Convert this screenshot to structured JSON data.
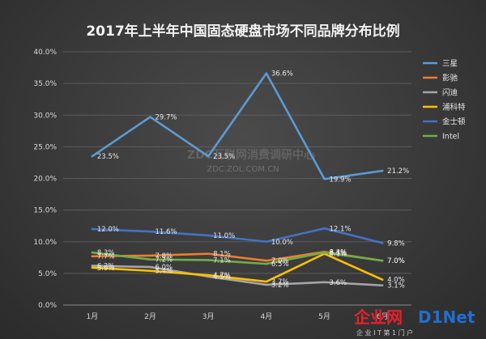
{
  "chart_data": {
    "type": "line",
    "title": "2017年上半年中国固态硬盘市场不同品牌分布比例",
    "categories": [
      "1月",
      "2月",
      "3月",
      "4月",
      "5月",
      "6月"
    ],
    "ylim": [
      0,
      40
    ],
    "yticks": [
      "0.0%",
      "5.0%",
      "10.0%",
      "15.0%",
      "20.0%",
      "25.0%",
      "30.0%",
      "35.0%",
      "40.0%"
    ],
    "grid": true,
    "legend_position": "right",
    "series": [
      {
        "name": "三星",
        "color": "#5b9bd5",
        "values": [
          23.5,
          29.7,
          23.5,
          36.6,
          19.9,
          21.2
        ],
        "labels": [
          "23.5%",
          "29.7%",
          "23.5%",
          "36.6%",
          "19.9%",
          "21.2%"
        ]
      },
      {
        "name": "影驰",
        "color": "#ed7d31",
        "values": [
          7.7,
          7.8,
          8.1,
          7.0,
          8.4,
          7.0
        ],
        "labels": [
          "7.7%",
          "7.8%",
          "8.1%",
          "7.0%",
          "8.4%",
          "7.0%"
        ]
      },
      {
        "name": "闪迪",
        "color": "#a5a5a5",
        "values": [
          6.2,
          6.0,
          4.5,
          3.2,
          3.6,
          3.1
        ],
        "labels": [
          "6.2%",
          "6.0%",
          "4.5%",
          "3.2%",
          "3.6%",
          "3.1%"
        ]
      },
      {
        "name": "浦科特",
        "color": "#ffc000",
        "values": [
          5.9,
          5.4,
          4.7,
          3.7,
          8.1,
          4.0
        ],
        "labels": [
          "5.9%",
          "5.4%",
          "4.7%",
          "3.7%",
          "8.1%",
          "4.0%"
        ]
      },
      {
        "name": "金士顿",
        "color": "#4472c4",
        "values": [
          12.0,
          11.6,
          11.0,
          10.0,
          12.1,
          9.8
        ],
        "labels": [
          "12.0%",
          "11.6%",
          "11.0%",
          "10.0%",
          "12.1%",
          "9.8%"
        ]
      },
      {
        "name": "Intel",
        "color": "#70ad47",
        "values": [
          8.3,
          7.2,
          7.1,
          6.5,
          8.3,
          7.0
        ],
        "labels": [
          "8.3%",
          "7.2%",
          "7.1%",
          "6.5%",
          "8.3%",
          "7.0%"
        ]
      }
    ]
  },
  "watermark": {
    "main": "ZDC互联网消费调研中心",
    "url": "ZDC.ZOL.COM.CN"
  },
  "logo": {
    "part1": "企业网",
    "part2": "D1Net",
    "sub": "企 业 I T 第 1 门 户"
  }
}
